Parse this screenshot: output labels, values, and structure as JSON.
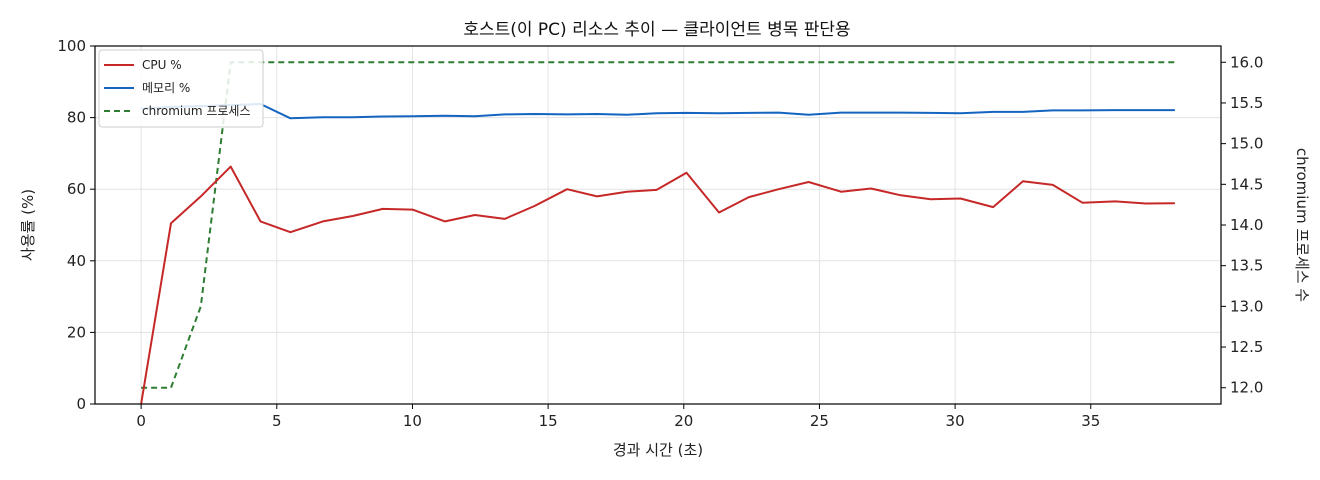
{
  "chart_data": {
    "type": "line",
    "title": "호스트(이 PC) 리소스 추이 — 클라이언트 병목 판단용",
    "xlabel": "경과 시간 (초)",
    "ylabel": "사용률 (%)",
    "y2label": "chromium 프로세스 수",
    "xlim": [
      -1.7,
      39.8
    ],
    "ylim": [
      0,
      100
    ],
    "y2lim": [
      11.8,
      16.2
    ],
    "xticks": [
      0,
      5,
      10,
      15,
      20,
      25,
      30,
      35
    ],
    "yticks": [
      0,
      20,
      40,
      60,
      80,
      100
    ],
    "y2ticks": [
      "12.0",
      "12.5",
      "13.0",
      "13.5",
      "14.0",
      "14.5",
      "15.0",
      "15.5",
      "16.0"
    ],
    "grid": true,
    "legend_position": "top-left",
    "x": [
      0,
      1.1,
      2.2,
      3.3,
      4.4,
      5.5,
      6.7,
      7.8,
      8.9,
      10.0,
      11.2,
      12.3,
      13.4,
      14.5,
      15.7,
      16.8,
      17.9,
      19.0,
      20.1,
      21.3,
      22.4,
      23.5,
      24.6,
      25.8,
      26.9,
      28.0,
      29.1,
      30.2,
      31.4,
      32.5,
      33.6,
      34.7,
      35.9,
      37.0,
      38.1
    ],
    "series": [
      {
        "name": "CPU %",
        "axis": "left",
        "color": "#c62828",
        "style": "solid",
        "values": [
          0,
          50.5,
          58,
          66.3,
          51,
          48,
          51,
          52.5,
          54.5,
          54.3,
          51,
          52.8,
          51.7,
          55.3,
          60,
          58,
          59.3,
          59.8,
          64.6,
          53.5,
          57.8,
          60,
          62,
          59.3,
          60.2,
          58.3,
          57.2,
          57.4,
          55,
          62.2,
          61.2,
          56.2,
          56.6,
          56,
          56.1
        ]
      },
      {
        "name": "메모리 %",
        "axis": "left",
        "color": "#1565c0",
        "style": "solid",
        "values": [
          82.5,
          83,
          83.2,
          83.5,
          83.8,
          79.8,
          80.1,
          80.1,
          80.3,
          80.4,
          80.5,
          80.4,
          80.9,
          81,
          80.9,
          81,
          80.8,
          81.2,
          81.3,
          81.2,
          81.3,
          81.4,
          80.8,
          81.4,
          81.4,
          81.4,
          81.3,
          81.2,
          81.6,
          81.6,
          82,
          82,
          82.1,
          82.1,
          82.1
        ]
      },
      {
        "name": "chromium 프로세스",
        "axis": "right",
        "color": "#2e7d32",
        "style": "dashed",
        "values": [
          12,
          12,
          13,
          16,
          16,
          16,
          16,
          16,
          16,
          16,
          16,
          16,
          16,
          16,
          16,
          16,
          16,
          16,
          16,
          16,
          16,
          16,
          16,
          16,
          16,
          16,
          16,
          16,
          16,
          16,
          16,
          16,
          16,
          16,
          16
        ]
      }
    ]
  }
}
